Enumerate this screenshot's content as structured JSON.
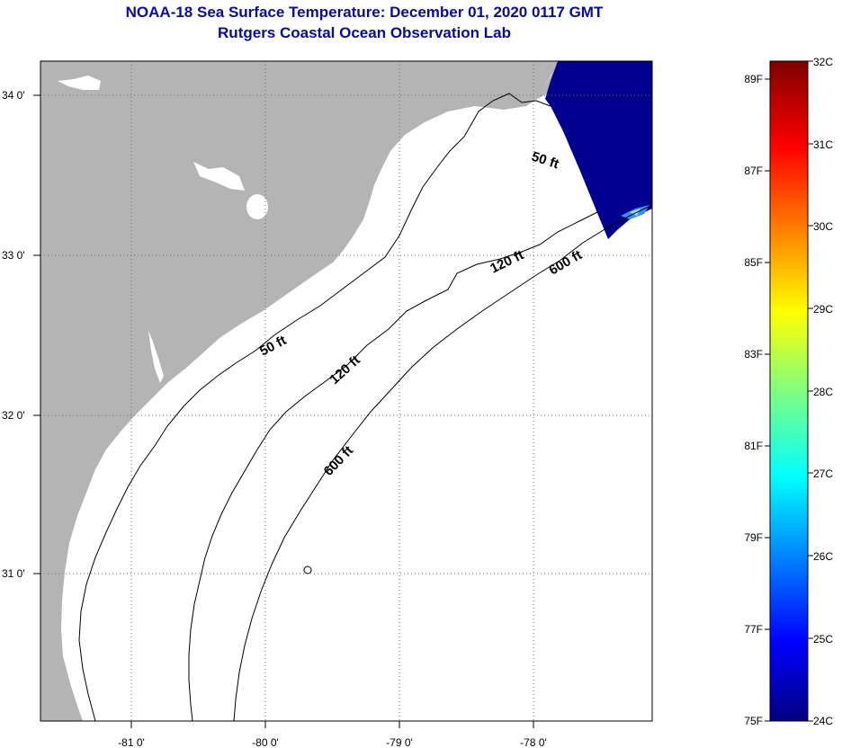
{
  "title": "NOAA-18 Sea Surface Temperature:  December 01, 2020 0117 GMT",
  "subtitle": "Rutgers Coastal Ocean Observation Lab",
  "lon_ticks": [
    "-81 0'",
    "-80 0'",
    "-79 0'",
    "-78 0'"
  ],
  "lat_ticks": [
    "34 0'",
    "33 0'",
    "32 0'",
    "31 0'"
  ],
  "contours": {
    "fifty_a": "50 ft",
    "fifty_b": "50 ft",
    "onetwenty_a": "120 ft",
    "onetwenty_b": "120 ft",
    "sixhundred_a": "600 ft",
    "sixhundred_b": "600 ft"
  },
  "colorbar": {
    "fahrenheit": [
      "89F",
      "87F",
      "85F",
      "83F",
      "81F",
      "79F",
      "77F",
      "75F"
    ],
    "celsius": [
      "32C",
      "31C",
      "30C",
      "29C",
      "28C",
      "27C",
      "26C",
      "25C",
      "24C"
    ]
  },
  "colors": {
    "land": "#b4b4b4",
    "water": "#ffffff",
    "sst_data": "#00008f",
    "title": "#0a0a9e"
  }
}
